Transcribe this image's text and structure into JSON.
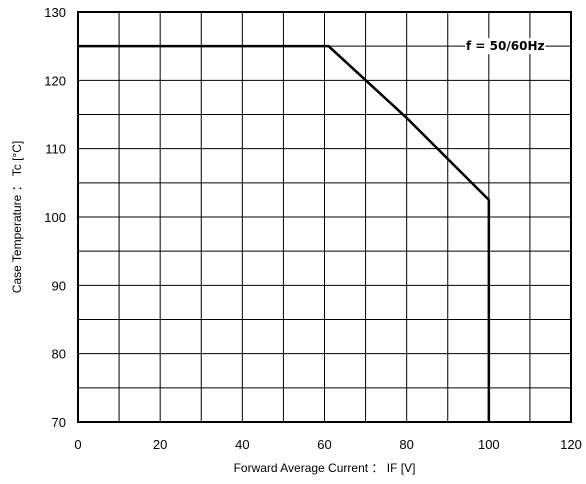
{
  "chart_data": {
    "type": "line",
    "title": "",
    "xlabel": "Forward Average Current ： IF [V]",
    "ylabel": "Case Temperature ：  Tc [°C]",
    "xlim": [
      0,
      120
    ],
    "ylim": [
      70,
      130
    ],
    "x_ticks": [
      "0",
      "20",
      "40",
      "60",
      "80",
      "100",
      "120"
    ],
    "y_ticks": [
      "70",
      "80",
      "90",
      "100",
      "110",
      "120",
      "130"
    ],
    "grid": true,
    "annotation": "f = 50/60Hz",
    "series": [
      {
        "x": [
          0,
          61,
          80,
          100,
          100
        ],
        "y": [
          125,
          125,
          114.5,
          102.5,
          70
        ]
      }
    ]
  }
}
